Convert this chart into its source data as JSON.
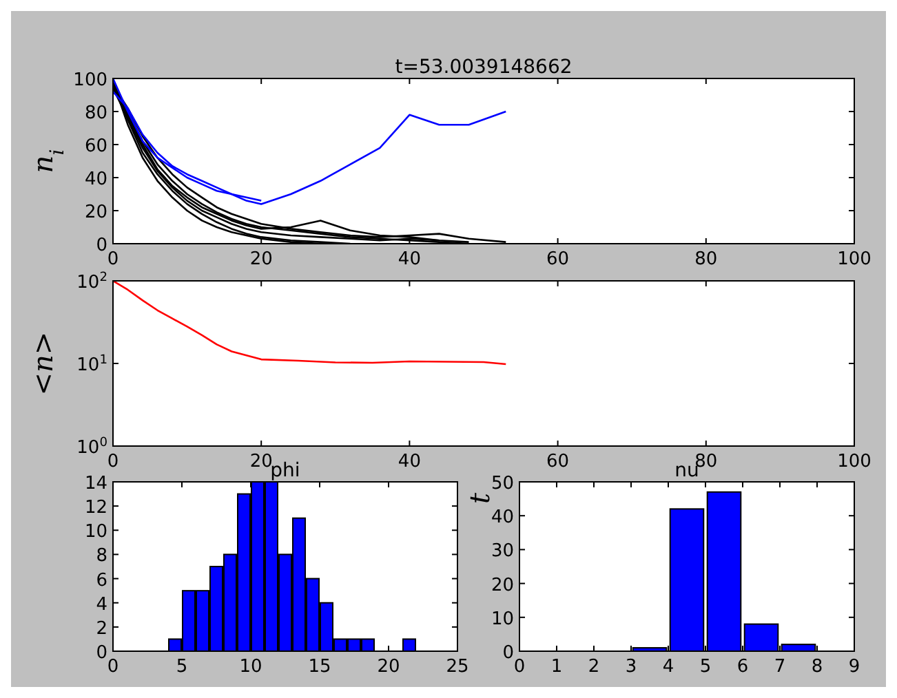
{
  "chart_data": [
    {
      "type": "line",
      "title": "t=53.0039148662",
      "ylabel": "n$_{i}$",
      "x": [
        0,
        2,
        4,
        6,
        8,
        10,
        12,
        14,
        16,
        18,
        20,
        24,
        28,
        32,
        36,
        40,
        44,
        48,
        53
      ],
      "xlim": [
        0,
        100
      ],
      "xticks": [
        0,
        20,
        40,
        60,
        80,
        100
      ],
      "ylim": [
        0,
        100
      ],
      "yticks": [
        0,
        20,
        40,
        60,
        80,
        100
      ],
      "series": [
        {
          "color": "#000000",
          "values": [
            99,
            75,
            55,
            42,
            32,
            24,
            18,
            13,
            9,
            6,
            4,
            2,
            1,
            0,
            null,
            null,
            null,
            null,
            null
          ]
        },
        {
          "color": "#000000",
          "values": [
            97,
            80,
            62,
            48,
            38,
            30,
            24,
            19,
            15,
            12,
            10,
            8,
            6,
            4,
            3,
            2,
            1,
            0,
            null
          ]
        },
        {
          "color": "#000000",
          "values": [
            95,
            78,
            60,
            45,
            35,
            28,
            22,
            18,
            14,
            11,
            9,
            10,
            14,
            8,
            5,
            4,
            2,
            1,
            null
          ]
        },
        {
          "color": "#000000",
          "values": [
            98,
            72,
            52,
            38,
            28,
            20,
            14,
            10,
            7,
            5,
            3,
            1,
            0,
            null,
            null,
            null,
            null,
            null,
            null
          ]
        },
        {
          "color": "#000000",
          "values": [
            96,
            82,
            65,
            52,
            42,
            34,
            28,
            22,
            18,
            15,
            12,
            9,
            7,
            5,
            4,
            5,
            6,
            3,
            1
          ]
        },
        {
          "color": "#000000",
          "values": [
            94,
            76,
            58,
            44,
            34,
            26,
            20,
            16,
            12,
            9,
            7,
            5,
            4,
            3,
            2,
            3,
            2,
            null,
            null
          ]
        },
        {
          "color": "#0000ff",
          "values": [
            92,
            82,
            66,
            55,
            47,
            42,
            38,
            34,
            30,
            28,
            26,
            null,
            null,
            null,
            null,
            null,
            null,
            null,
            null
          ]
        },
        {
          "color": "#0000ff",
          "values": [
            100,
            80,
            62,
            52,
            46,
            40,
            36,
            32,
            30,
            26,
            24,
            30,
            38,
            48,
            58,
            78,
            72,
            72,
            80
          ]
        }
      ]
    },
    {
      "type": "line",
      "ylabel": "<n>",
      "log": "y",
      "x": [
        0,
        2,
        4,
        6,
        8,
        10,
        12,
        14,
        16,
        18,
        20,
        25,
        30,
        35,
        40,
        45,
        50,
        53
      ],
      "xlim": [
        0,
        100
      ],
      "xticks": [
        0,
        20,
        40,
        60,
        80,
        100
      ],
      "ylim": [
        1,
        100
      ],
      "yticks": [
        {
          "value": 1,
          "label": "10$^{0}$"
        },
        {
          "value": 10,
          "label": "10$^{1}$"
        },
        {
          "value": 100,
          "label": "10$^{2}$"
        }
      ],
      "series": [
        {
          "color": "#ff0000",
          "values": [
            100,
            78,
            58,
            44,
            35,
            28,
            22,
            17,
            14,
            12.5,
            11.2,
            10.8,
            10.3,
            10.2,
            10.6,
            10.5,
            10.4,
            9.8
          ]
        }
      ]
    },
    {
      "type": "histogram",
      "title": "phi",
      "color": "#0000ff",
      "bins": [
        4,
        5,
        6,
        7,
        8,
        9,
        10,
        11,
        12,
        13,
        14,
        15,
        16,
        17,
        18,
        19,
        20,
        21,
        22
      ],
      "values": [
        1,
        5,
        5,
        7,
        8,
        13,
        14,
        14,
        8,
        11,
        6,
        4,
        1,
        1,
        1,
        0,
        0,
        1
      ],
      "xlim": [
        0,
        25
      ],
      "xticks": [
        0,
        5,
        10,
        15,
        20,
        25
      ],
      "ylim": [
        0,
        14
      ],
      "yticks": [
        0,
        2,
        4,
        6,
        8,
        10,
        12,
        14
      ]
    },
    {
      "type": "histogram",
      "title": "nu",
      "ylabel": "t",
      "color": "#0000ff",
      "bins": [
        3,
        4,
        5,
        6,
        7,
        8
      ],
      "values": [
        1,
        42,
        47,
        8,
        2
      ],
      "xlim": [
        0,
        9
      ],
      "xticks": [
        0,
        1,
        2,
        3,
        4,
        5,
        6,
        7,
        8,
        9
      ],
      "ylim": [
        0,
        50
      ],
      "yticks": [
        0,
        10,
        20,
        30,
        40,
        50
      ]
    }
  ]
}
